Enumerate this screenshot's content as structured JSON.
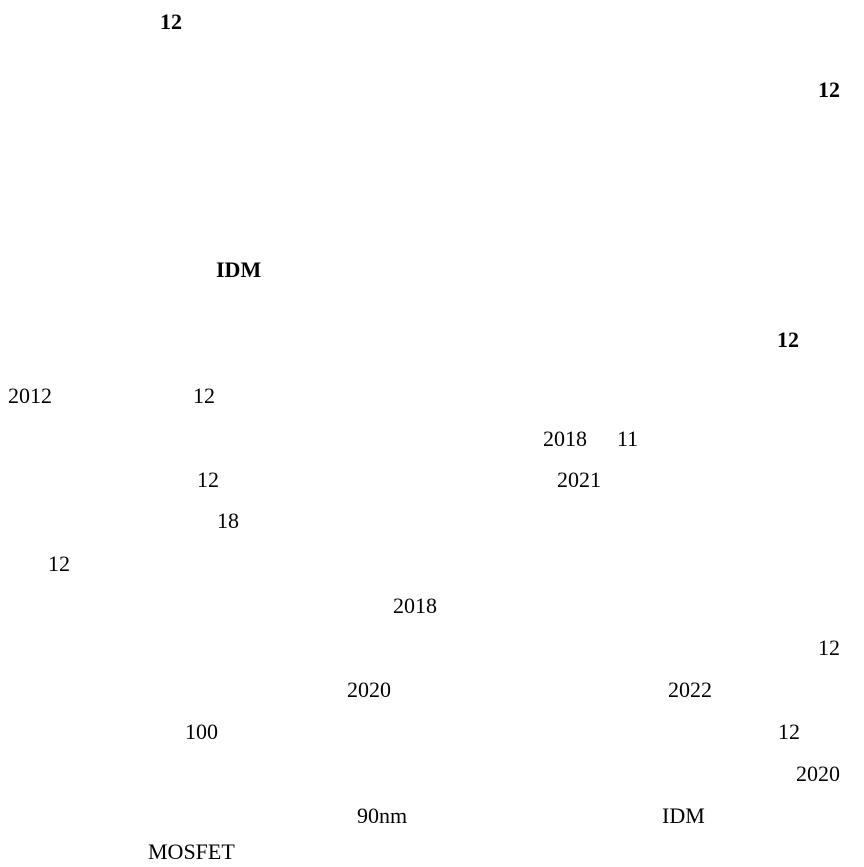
{
  "headings": [
    "12",
    "12",
    "IDM",
    "12"
  ],
  "body": [
    "2012",
    "12",
    "2018",
    "11",
    "12",
    "2021",
    "18",
    "12",
    "2018",
    "12",
    "2020",
    "2022",
    "100",
    "12",
    "2020",
    "90nm",
    "IDM",
    "MOSFET"
  ]
}
